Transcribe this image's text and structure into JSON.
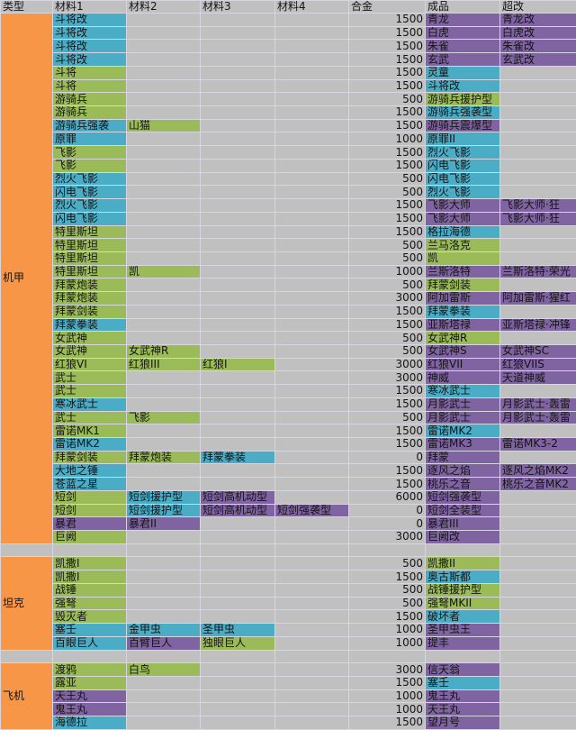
{
  "headers": [
    "类型",
    "材料1",
    "材料2",
    "材料3",
    "材料4",
    "合金",
    "成品",
    "超改"
  ],
  "colors": {
    "orange": "#f79646",
    "blue": "#4bacc6",
    "green": "#9bbb59",
    "purple": "#8064a2",
    "empty": "#c0c0c0"
  },
  "groups": [
    {
      "type": "机甲",
      "rows": [
        {
          "mats": [
            [
              "斗将改",
              "b"
            ]
          ],
          "alloy": "1500",
          "product": [
            "青龙",
            "p"
          ],
          "super": [
            "青龙改",
            "p"
          ]
        },
        {
          "mats": [
            [
              "斗将改",
              "b"
            ]
          ],
          "alloy": "1500",
          "product": [
            "白虎",
            "p"
          ],
          "super": [
            "白虎改",
            "p"
          ]
        },
        {
          "mats": [
            [
              "斗将改",
              "b"
            ]
          ],
          "alloy": "1500",
          "product": [
            "朱雀",
            "p"
          ],
          "super": [
            "朱雀改",
            "p"
          ]
        },
        {
          "mats": [
            [
              "斗将改",
              "b"
            ]
          ],
          "alloy": "1500",
          "product": [
            "玄武",
            "p"
          ],
          "super": [
            "玄武改",
            "p"
          ]
        },
        {
          "mats": [
            [
              "斗将",
              "g"
            ]
          ],
          "alloy": "1500",
          "product": [
            "灵童",
            "b"
          ]
        },
        {
          "mats": [
            [
              "斗将",
              "g"
            ]
          ],
          "alloy": "1500",
          "product": [
            "斗将改",
            "b"
          ]
        },
        {
          "mats": [
            [
              "游骑兵",
              "g"
            ]
          ],
          "alloy": "500",
          "product": [
            "游骑兵援护型",
            "g"
          ]
        },
        {
          "mats": [
            [
              "游骑兵",
              "g"
            ]
          ],
          "alloy": "1500",
          "product": [
            "游骑兵强袭型",
            "b"
          ]
        },
        {
          "mats": [
            [
              "游骑兵强袭",
              "b"
            ],
            [
              "山猫",
              "g"
            ]
          ],
          "alloy": "1500",
          "product": [
            "游骑兵震爆型",
            "p"
          ]
        },
        {
          "mats": [
            [
              "原罪",
              "b"
            ]
          ],
          "alloy": "1000",
          "product": [
            "原罪II",
            "b"
          ]
        },
        {
          "mats": [
            [
              "飞影",
              "g"
            ]
          ],
          "alloy": "1500",
          "product": [
            "烈火飞影",
            "b"
          ]
        },
        {
          "mats": [
            [
              "飞影",
              "g"
            ]
          ],
          "alloy": "1500",
          "product": [
            "闪电飞影",
            "b"
          ]
        },
        {
          "mats": [
            [
              "烈火飞影",
              "b"
            ]
          ],
          "alloy": "500",
          "product": [
            "闪电飞影",
            "b"
          ]
        },
        {
          "mats": [
            [
              "闪电飞影",
              "b"
            ]
          ],
          "alloy": "500",
          "product": [
            "烈火飞影",
            "b"
          ]
        },
        {
          "mats": [
            [
              "烈火飞影",
              "b"
            ]
          ],
          "alloy": "1500",
          "product": [
            "飞影大师",
            "p"
          ],
          "super": [
            "飞影大师·狂",
            "p"
          ]
        },
        {
          "mats": [
            [
              "闪电飞影",
              "b"
            ]
          ],
          "alloy": "1500",
          "product": [
            "飞影大师",
            "p"
          ],
          "super": [
            "飞影大师·狂",
            "p"
          ]
        },
        {
          "mats": [
            [
              "特里斯坦",
              "g"
            ]
          ],
          "alloy": "1500",
          "product": [
            "格拉海德",
            "b"
          ]
        },
        {
          "mats": [
            [
              "特里斯坦",
              "g"
            ]
          ],
          "alloy": "500",
          "product": [
            "兰马洛克",
            "g"
          ]
        },
        {
          "mats": [
            [
              "特里斯坦",
              "g"
            ]
          ],
          "alloy": "500",
          "product": [
            "凯",
            "g"
          ]
        },
        {
          "mats": [
            [
              "特里斯坦",
              "g"
            ],
            [
              "凯",
              "g"
            ]
          ],
          "alloy": "1000",
          "product": [
            "兰斯洛特",
            "p"
          ],
          "super": [
            "兰斯洛特·荣光",
            "p"
          ]
        },
        {
          "mats": [
            [
              "拜蒙炮装",
              "g"
            ]
          ],
          "alloy": "500",
          "product": [
            "拜蒙剑装",
            "g"
          ]
        },
        {
          "mats": [
            [
              "拜蒙炮装",
              "g"
            ]
          ],
          "alloy": "3000",
          "product": [
            "阿加雷斯",
            "p"
          ],
          "super": [
            "阿加雷斯·猩红",
            "p"
          ]
        },
        {
          "mats": [
            [
              "拜蒙剑装",
              "g"
            ]
          ],
          "alloy": "1500",
          "product": [
            "拜蒙拳装",
            "b"
          ]
        },
        {
          "mats": [
            [
              "拜蒙拳装",
              "b"
            ]
          ],
          "alloy": "1500",
          "product": [
            "亚斯塔禄",
            "p"
          ],
          "super": [
            "亚斯塔禄·冲锋",
            "p"
          ]
        },
        {
          "mats": [
            [
              "女武神",
              "g"
            ]
          ],
          "alloy": "500",
          "product": [
            "女武神R",
            "g"
          ]
        },
        {
          "mats": [
            [
              "女武神",
              "g"
            ],
            [
              "女武神R",
              "g"
            ]
          ],
          "alloy": "500",
          "product": [
            "女武神S",
            "p"
          ],
          "super": [
            "女武神SC",
            "p"
          ]
        },
        {
          "mats": [
            [
              "红狼VI",
              "g"
            ],
            [
              "红狼III",
              "g"
            ],
            [
              "红狼I",
              "g"
            ]
          ],
          "alloy": "3000",
          "product": [
            "红狼VII",
            "p"
          ],
          "super": [
            "红狼VIIS",
            "p"
          ]
        },
        {
          "mats": [
            [
              "武士",
              "g"
            ]
          ],
          "alloy": "3000",
          "product": [
            "神威",
            "p"
          ],
          "super": [
            "天道神威",
            "p"
          ]
        },
        {
          "mats": [
            [
              "武士",
              "g"
            ]
          ],
          "alloy": "1500",
          "product": [
            "寒冰武士",
            "b"
          ]
        },
        {
          "mats": [
            [
              "寒冰武士",
              "b"
            ]
          ],
          "alloy": "1500",
          "product": [
            "月影武士",
            "p"
          ],
          "super": [
            "月影武士·轰雷",
            "p"
          ]
        },
        {
          "mats": [
            [
              "武士",
              "g"
            ],
            [
              "飞影",
              "g"
            ]
          ],
          "alloy": "500",
          "product": [
            "月影武士",
            "p"
          ],
          "super": [
            "月影武士·轰雷",
            "p"
          ]
        },
        {
          "mats": [
            [
              "雷诺MK1",
              "g"
            ]
          ],
          "alloy": "1500",
          "product": [
            "雷诺MK2",
            "b"
          ]
        },
        {
          "mats": [
            [
              "雷诺MK2",
              "b"
            ]
          ],
          "alloy": "1500",
          "product": [
            "雷诺MK3",
            "p"
          ],
          "super": [
            "雷诺MK3-2",
            "p"
          ]
        },
        {
          "mats": [
            [
              "拜蒙剑装",
              "g"
            ],
            [
              "拜蒙炮装",
              "g"
            ],
            [
              "拜蒙拳装",
              "b"
            ]
          ],
          "alloy": "0",
          "product": [
            "拜蒙",
            "p"
          ]
        },
        {
          "mats": [
            [
              "大地之锤",
              "b"
            ]
          ],
          "alloy": "1500",
          "product": [
            "逐风之焰",
            "p"
          ],
          "super": [
            "逐风之焰MK2",
            "p"
          ]
        },
        {
          "mats": [
            [
              "苍蓝之星",
              "b"
            ]
          ],
          "alloy": "1500",
          "product": [
            "桃乐之音",
            "p"
          ],
          "super": [
            "桃乐之音MK2",
            "p"
          ]
        },
        {
          "mats": [
            [
              "短剑",
              "g"
            ],
            [
              "短剑援护型",
              "b"
            ],
            [
              "短剑高机动型",
              "p"
            ]
          ],
          "alloy": "6000",
          "product": [
            "短剑强袭型",
            "p"
          ]
        },
        {
          "mats": [
            [
              "短剑",
              "g"
            ],
            [
              "短剑援护型",
              "b"
            ],
            [
              "短剑高机动型",
              "p"
            ],
            [
              "短剑强袭型",
              "p"
            ]
          ],
          "alloy": "0",
          "product": [
            "短剑全装型",
            "p"
          ]
        },
        {
          "mats": [
            [
              "暴君",
              "p"
            ],
            [
              "暴君II",
              "p"
            ]
          ],
          "alloy": "0",
          "product": [
            "暴君III",
            "p"
          ]
        },
        {
          "mats": [
            [
              "巨阙",
              "g"
            ]
          ],
          "alloy": "3000",
          "product": [
            "巨阙改",
            "p"
          ]
        }
      ]
    },
    {
      "type": "坦克",
      "rows": [
        {
          "mats": [
            [
              "凯撒I",
              "g"
            ]
          ],
          "alloy": "500",
          "product": [
            "凯撒II",
            "g"
          ]
        },
        {
          "mats": [
            [
              "凯撒I",
              "g"
            ]
          ],
          "alloy": "1500",
          "product": [
            "奥古斯都",
            "b"
          ]
        },
        {
          "mats": [
            [
              "战锤",
              "g"
            ]
          ],
          "alloy": "500",
          "product": [
            "战锤援护型",
            "g"
          ]
        },
        {
          "mats": [
            [
              "强弩",
              "g"
            ]
          ],
          "alloy": "500",
          "product": [
            "强弩MKII",
            "g"
          ]
        },
        {
          "mats": [
            [
              "毁灭者",
              "g"
            ]
          ],
          "alloy": "1500",
          "product": [
            "破坏者",
            "b"
          ]
        },
        {
          "mats": [
            [
              "塞壬",
              "b"
            ],
            [
              "金甲虫",
              "b"
            ],
            [
              "圣甲虫",
              "b"
            ]
          ],
          "alloy": "1000",
          "product": [
            "圣甲虫王",
            "p"
          ]
        },
        {
          "mats": [
            [
              "百眼巨人",
              "b"
            ],
            [
              "百臂巨人",
              "p"
            ],
            [
              "独眼巨人",
              "g"
            ]
          ],
          "alloy": "1000",
          "product": [
            "提丰",
            "p"
          ]
        }
      ]
    },
    {
      "type": "飞机",
      "rows": [
        {
          "mats": [
            [
              "渡鸦",
              "g"
            ],
            [
              "白鸟",
              "g"
            ]
          ],
          "alloy": "3000",
          "product": [
            "信天翁",
            "p"
          ]
        },
        {
          "mats": [
            [
              "露亚",
              "g"
            ]
          ],
          "alloy": "1500",
          "product": [
            "塞壬",
            "b"
          ]
        },
        {
          "mats": [
            [
              "天王丸",
              "p"
            ]
          ],
          "alloy": "1000",
          "product": [
            "鬼王丸",
            "p"
          ]
        },
        {
          "mats": [
            [
              "鬼王丸",
              "p"
            ]
          ],
          "alloy": "1000",
          "product": [
            "天王丸",
            "p"
          ]
        },
        {
          "mats": [
            [
              "海德拉",
              "b"
            ]
          ],
          "alloy": "1500",
          "product": [
            "望月号",
            "p"
          ]
        }
      ]
    }
  ]
}
